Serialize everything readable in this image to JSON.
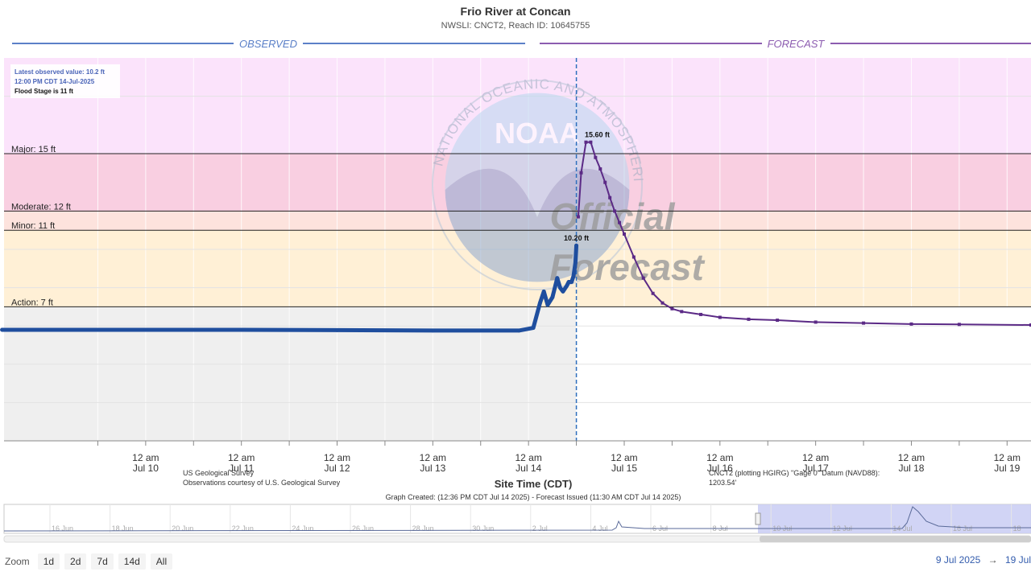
{
  "page": {
    "title": "Frio River at Concan",
    "subtitle": "NWSLI: CNCT2, Reach ID: 10645755",
    "observed_label": "OBSERVED",
    "forecast_label": "FORECAST",
    "watermark_official": "Official",
    "watermark_forecast": "Forecast",
    "watermark_seal_text": "NATIONAL OCEANIC AND ATMOSPHERIC ADMINISTRATION · U.S. DEPARTMENT OF COMMERCE",
    "noaa_logo_text": "NOAA",
    "info_box": {
      "latest": "Latest observed value: 10.2 ft",
      "time": "12:00 PM CDT 14-Jul-2025",
      "flood_stage": "Flood Stage is 11 ft"
    },
    "usgs_line1": "US Geological Survey",
    "usgs_line2": "Observations courtesy of U.S. Geological Survey",
    "datum_line1": "CNCT2 (plotting HGIRG) \"Gage 0\" Datum (NAVD88):",
    "datum_line2": "1203.54'",
    "graph_created": "Graph Created: (12:36 PM CDT Jul 14 2025) - Forecast Issued (11:30 AM CDT Jul 14 2025)",
    "zoom": {
      "label": "Zoom",
      "buttons": [
        "1d",
        "2d",
        "7d",
        "14d",
        "All"
      ]
    },
    "date_range": {
      "from": "9 Jul 2025",
      "arrow": "→",
      "to": "19 Jul"
    }
  },
  "chart_data": {
    "type": "line",
    "xlabel": "Site Time (CDT)",
    "ylabel": "",
    "ylim": [
      0,
      20
    ],
    "x_tick_labels": [
      {
        "t": 1,
        "line1": "12 am",
        "line2": "Jul 10"
      },
      {
        "t": 2,
        "line1": "12 am",
        "line2": "Jul 11"
      },
      {
        "t": 3,
        "line1": "12 am",
        "line2": "Jul 12"
      },
      {
        "t": 4,
        "line1": "12 am",
        "line2": "Jul 13"
      },
      {
        "t": 5,
        "line1": "12 am",
        "line2": "Jul 14"
      },
      {
        "t": 6,
        "line1": "12 am",
        "line2": "Jul 15"
      },
      {
        "t": 7,
        "line1": "12 am",
        "line2": "Jul 16"
      },
      {
        "t": 8,
        "line1": "12 am",
        "line2": "Jul 17"
      },
      {
        "t": 9,
        "line1": "12 am",
        "line2": "Jul 18"
      },
      {
        "t": 10,
        "line1": "12 am",
        "line2": "Jul 19"
      }
    ],
    "thresholds": [
      {
        "label": "Major: 15 ft",
        "value": 15,
        "color": "#f9cfe1"
      },
      {
        "label": "Moderate: 12 ft",
        "value": 12,
        "color": "#fde3dd"
      },
      {
        "label": "Minor: 11 ft",
        "value": 11,
        "color": "#fff0d6"
      },
      {
        "label": "Action: 7 ft",
        "value": 7,
        "color": "#fffbe4"
      }
    ],
    "annotations": [
      {
        "label": "15.60 ft",
        "t": 5.6,
        "y": 15.6
      },
      {
        "label": "10.20 ft",
        "t": 5.5,
        "y": 10.2
      }
    ],
    "colors": {
      "observed": "#1f4e9e",
      "forecast": "#5b2a86",
      "major_band": "#fbe3fb",
      "observed_area": "#efefef",
      "divider": "#2e6fbd"
    },
    "series": [
      {
        "name": "Observed",
        "points": [
          [
            -0.5,
            5.8
          ],
          [
            0,
            5.8
          ],
          [
            1,
            5.8
          ],
          [
            2,
            5.8
          ],
          [
            3,
            5.78
          ],
          [
            4,
            5.76
          ],
          [
            4.9,
            5.76
          ],
          [
            5.05,
            5.9
          ],
          [
            5.12,
            7.2
          ],
          [
            5.16,
            7.8
          ],
          [
            5.2,
            7.1
          ],
          [
            5.25,
            7.5
          ],
          [
            5.28,
            8.1
          ],
          [
            5.3,
            8.5
          ],
          [
            5.33,
            8.0
          ],
          [
            5.36,
            7.8
          ],
          [
            5.4,
            8.1
          ],
          [
            5.42,
            8.3
          ],
          [
            5.45,
            8.3
          ],
          [
            5.47,
            8.6
          ],
          [
            5.49,
            9.3
          ],
          [
            5.5,
            10.2
          ]
        ]
      },
      {
        "name": "Forecast",
        "points": [
          [
            5.52,
            11.7
          ],
          [
            5.55,
            14.0
          ],
          [
            5.6,
            15.6
          ],
          [
            5.65,
            15.6
          ],
          [
            5.7,
            14.8
          ],
          [
            5.75,
            14.2
          ],
          [
            5.8,
            13.5
          ],
          [
            5.85,
            12.7
          ],
          [
            5.9,
            12.0
          ],
          [
            5.95,
            11.4
          ],
          [
            6.0,
            10.8
          ],
          [
            6.1,
            9.6
          ],
          [
            6.2,
            8.5
          ],
          [
            6.3,
            7.7
          ],
          [
            6.4,
            7.2
          ],
          [
            6.5,
            6.9
          ],
          [
            6.6,
            6.75
          ],
          [
            6.8,
            6.6
          ],
          [
            7.0,
            6.45
          ],
          [
            7.3,
            6.35
          ],
          [
            7.6,
            6.3
          ],
          [
            8.0,
            6.2
          ],
          [
            8.5,
            6.15
          ],
          [
            9.0,
            6.1
          ],
          [
            9.5,
            6.08
          ],
          [
            10.25,
            6.05
          ]
        ]
      }
    ],
    "navigator": {
      "labels": [
        "16 Jun",
        "18 Jun",
        "20 Jun",
        "22 Jun",
        "24 Jun",
        "26 Jun",
        "28 Jun",
        "30 Jun",
        "2 Jul",
        "4 Jul",
        "6 Jul",
        "8 Jul",
        "10 Jul",
        "12 Jul",
        "14 Jul",
        "16 Jul",
        "18"
      ]
    }
  }
}
